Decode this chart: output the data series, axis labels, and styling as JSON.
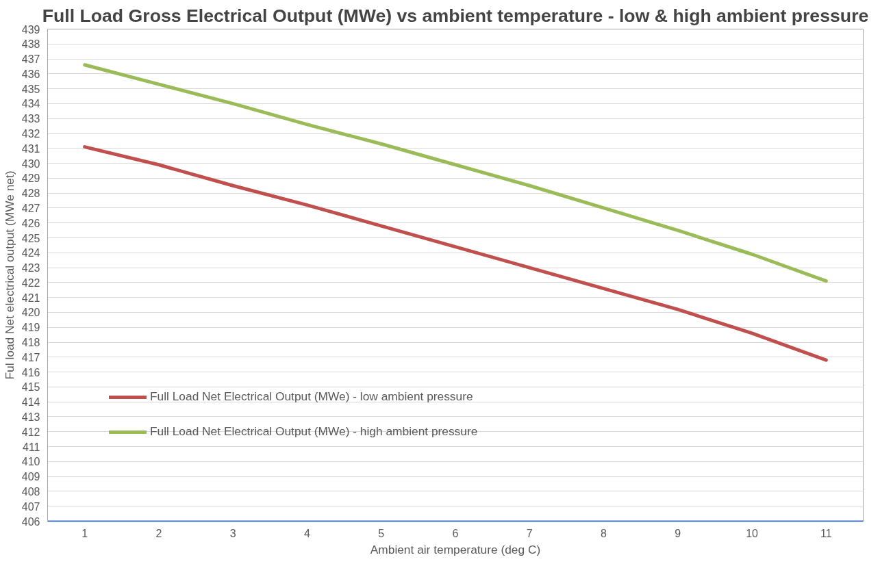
{
  "chart_data": {
    "type": "line",
    "title": "Full Load Gross Electrical Output (MWe) vs ambient temperature - low & high ambient pressure",
    "xlabel": "Ambient air temperature (deg C)",
    "ylabel": "Ful load Net electrical output (MWe net)",
    "categories": [
      "1",
      "2",
      "3",
      "4",
      "5",
      "6",
      "7",
      "8",
      "9",
      "10",
      "11"
    ],
    "series": [
      {
        "name": "Full Load Net Electrical Output (MWe) - low ambient pressure",
        "color": "#c0504d",
        "values": [
          431.1,
          429.9,
          428.5,
          427.2,
          425.8,
          424.4,
          423.0,
          421.6,
          420.2,
          418.6,
          416.8
        ]
      },
      {
        "name": "Full Load Net Electrical Output (MWe) - high ambient pressure",
        "color": "#9bbb59",
        "values": [
          436.6,
          435.3,
          434.0,
          432.6,
          431.3,
          429.9,
          428.5,
          427.0,
          425.5,
          423.9,
          422.1
        ]
      }
    ],
    "ylim": [
      406,
      439
    ],
    "yticks": [
      406,
      407,
      408,
      409,
      410,
      411,
      412,
      413,
      414,
      415,
      416,
      417,
      418,
      419,
      420,
      421,
      422,
      423,
      424,
      425,
      426,
      427,
      428,
      429,
      430,
      431,
      432,
      433,
      434,
      435,
      436,
      437,
      438,
      439
    ],
    "grid": "y",
    "legend": "left",
    "marker": "none",
    "line_style": "solid"
  }
}
